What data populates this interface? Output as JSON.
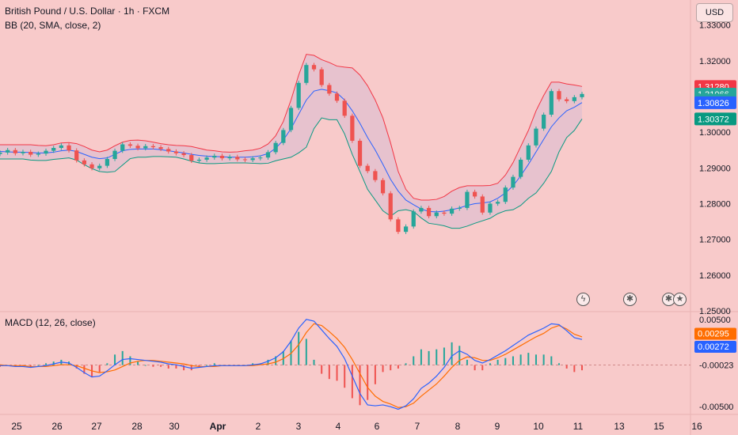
{
  "header": {
    "title": "British Pound / U.S. Dollar · 1h · FXCM",
    "bb_label": "BB (20, SMA, close, 2)",
    "macd_label": "MACD (12, 26, close)",
    "currency_button": "USD"
  },
  "colors": {
    "background": "#f8caca",
    "bull": "#26a69a",
    "bear": "#ef5350",
    "upper_band": "#f23645",
    "lower_band": "#089981",
    "basis": "#2962ff",
    "macd_line": "#2962ff",
    "signal_line": "#ff6d00"
  },
  "icons": [
    "lightning-icon",
    "flag-gb-icon",
    "flag-gb-us-icon"
  ],
  "chart_data": [
    {
      "type": "candlestick",
      "title": "British Pound / U.S. Dollar · 1h · FXCM",
      "indicator": "BB (20, SMA, close, 2)",
      "x_ticks": [
        "25",
        "26",
        "27",
        "28",
        "30",
        "Apr",
        "2",
        "3",
        "4",
        "6",
        "7",
        "8",
        "9",
        "10",
        "11",
        "13",
        "15",
        "16"
      ],
      "y_ticks": [
        "1.25000",
        "1.26000",
        "1.27000",
        "1.28000",
        "1.29000",
        "1.30000",
        "1.31000",
        "1.32000",
        "1.33000"
      ],
      "ylim": [
        1.25,
        1.337
      ],
      "price_labels": [
        {
          "label": "1.31280",
          "value": 1.3128,
          "color": "#f23645"
        },
        {
          "label": "1.31066",
          "value": 1.31066,
          "color": "#26a69a"
        },
        {
          "label": "59:47",
          "value": 1.309,
          "color": "#26a69a"
        },
        {
          "label": "1.30826",
          "value": 1.30826,
          "color": "#2962ff"
        },
        {
          "label": "1.30372",
          "value": 1.30372,
          "color": "#089981"
        }
      ],
      "close_values": [
        1.2943,
        1.295,
        1.2941,
        1.2945,
        1.2937,
        1.294,
        1.2948,
        1.2956,
        1.2963,
        1.2949,
        1.2921,
        1.291,
        1.2899,
        1.2906,
        1.2925,
        1.2948,
        1.2966,
        1.2962,
        1.2955,
        1.2961,
        1.2958,
        1.2953,
        1.2946,
        1.2941,
        1.2936,
        1.292,
        1.2923,
        1.2929,
        1.2934,
        1.2927,
        1.2931,
        1.2924,
        1.2922,
        1.2927,
        1.2929,
        1.2944,
        1.297,
        1.3006,
        1.3068,
        1.3138,
        1.3188,
        1.3176,
        1.3132,
        1.3108,
        1.3088,
        1.3046,
        1.2976,
        1.2906,
        1.2891,
        1.2866,
        1.2829,
        1.2756,
        1.2721,
        1.2736,
        1.2778,
        1.2788,
        1.2765,
        1.2775,
        1.2772,
        1.2786,
        1.2788,
        1.2833,
        1.282,
        1.2775,
        1.28,
        1.2805,
        1.2845,
        1.2875,
        1.2923,
        1.2963,
        1.301,
        1.3049,
        1.3115,
        1.3092,
        1.3087,
        1.3098,
        1.3107
      ],
      "bb_upper": [
        1.2965,
        1.2965,
        1.2965,
        1.2965,
        1.2965,
        1.2963,
        1.2962,
        1.2965,
        1.297,
        1.2971,
        1.2968,
        1.296,
        1.295,
        1.2945,
        1.295,
        1.2962,
        1.2972,
        1.2977,
        1.2978,
        1.2976,
        1.2972,
        1.2968,
        1.2965,
        1.2963,
        1.2962,
        1.296,
        1.2955,
        1.295,
        1.2948,
        1.2945,
        1.2944,
        1.2945,
        1.2948,
        1.295,
        1.2955,
        1.2967,
        1.299,
        1.303,
        1.309,
        1.316,
        1.3218,
        1.3215,
        1.3203,
        1.3195,
        1.3185,
        1.3182,
        1.318,
        1.316,
        1.313,
        1.309,
        1.304,
        1.297,
        1.289,
        1.284,
        1.2815,
        1.281,
        1.281,
        1.2812,
        1.282,
        1.2835,
        1.2845,
        1.285,
        1.285,
        1.285,
        1.2851,
        1.2857,
        1.288,
        1.2915,
        1.296,
        1.3005,
        1.306,
        1.3103,
        1.314,
        1.314,
        1.3135,
        1.3132,
        1.3128
      ],
      "bb_basis": [
        1.2946,
        1.2945,
        1.2944,
        1.2944,
        1.2943,
        1.2942,
        1.2942,
        1.2944,
        1.2948,
        1.295,
        1.2946,
        1.2938,
        1.293,
        1.2926,
        1.2928,
        1.2938,
        1.2948,
        1.2952,
        1.2953,
        1.2953,
        1.2953,
        1.2951,
        1.2948,
        1.2945,
        1.2942,
        1.2938,
        1.2935,
        1.2933,
        1.2932,
        1.2931,
        1.293,
        1.293,
        1.293,
        1.2931,
        1.2934,
        1.294,
        1.2955,
        1.2978,
        1.301,
        1.305,
        1.309,
        1.3115,
        1.312,
        1.3116,
        1.311,
        1.309,
        1.306,
        1.3025,
        1.2985,
        1.295,
        1.291,
        1.2868,
        1.2835,
        1.281,
        1.2797,
        1.2785,
        1.2778,
        1.2777,
        1.2779,
        1.2783,
        1.2788,
        1.2795,
        1.28,
        1.2802,
        1.2805,
        1.2815,
        1.283,
        1.285,
        1.2878,
        1.291,
        1.2945,
        1.298,
        1.3015,
        1.304,
        1.306,
        1.307,
        1.3083
      ],
      "bb_lower": [
        1.2925,
        1.2925,
        1.2925,
        1.2925,
        1.2922,
        1.2921,
        1.2921,
        1.2924,
        1.2926,
        1.2928,
        1.2922,
        1.2909,
        1.2898,
        1.289,
        1.2888,
        1.289,
        1.2908,
        1.2926,
        1.293,
        1.293,
        1.2932,
        1.2932,
        1.2931,
        1.293,
        1.2925,
        1.2919,
        1.2914,
        1.2912,
        1.2912,
        1.2913,
        1.2914,
        1.2914,
        1.2914,
        1.2913,
        1.2912,
        1.2913,
        1.292,
        1.2925,
        1.293,
        1.2942,
        1.2958,
        1.301,
        1.304,
        1.3035,
        1.3035,
        1.2995,
        1.2938,
        1.289,
        1.284,
        1.281,
        1.278,
        1.2765,
        1.278,
        1.2783,
        1.2778,
        1.276,
        1.2745,
        1.2742,
        1.2738,
        1.2731,
        1.2731,
        1.2737,
        1.2745,
        1.2752,
        1.2759,
        1.2772,
        1.278,
        1.2783,
        1.2795,
        1.2815,
        1.283,
        1.2857,
        1.289,
        1.2945,
        1.2985,
        1.3005,
        1.3037
      ]
    },
    {
      "type": "line",
      "title": "MACD (12, 26, close)",
      "y_ticks": [
        "-0.00500",
        "-0.00023",
        "0.00500"
      ],
      "ylim": [
        -0.0058,
        0.0058
      ],
      "price_labels": [
        {
          "label": "0.00295",
          "value": 0.00295,
          "color": "#ff6d00"
        },
        {
          "label": "0.00272",
          "value": 0.00272,
          "color": "#2962ff"
        },
        {
          "label": "-0.00023",
          "value": -0.00023,
          "color": "#131722"
        }
      ],
      "series": [
        {
          "name": "MACD",
          "values": [
            -0.0003,
            -0.0003,
            -0.0004,
            -0.0004,
            -0.0005,
            -0.0004,
            -0.0003,
            -0.0001,
            0.0001,
            0.0,
            -0.0005,
            -0.0011,
            -0.0016,
            -0.0015,
            -0.0009,
            -0.0002,
            0.0004,
            0.0005,
            0.0004,
            0.0003,
            0.0002,
            0.0001,
            -0.0001,
            -0.0002,
            -0.0004,
            -0.0006,
            -0.0005,
            -0.0004,
            -0.0003,
            -0.0003,
            -0.0003,
            -0.0003,
            -0.0003,
            -0.0002,
            -0.0001,
            0.0002,
            0.0006,
            0.0013,
            0.0025,
            0.004,
            0.005,
            0.0048,
            0.0038,
            0.0028,
            0.0019,
            0.0005,
            -0.0015,
            -0.0035,
            -0.0048,
            -0.0049,
            -0.0048,
            -0.005,
            -0.0053,
            -0.0049,
            -0.0041,
            -0.0029,
            -0.0023,
            -0.0015,
            -0.0005,
            0.0008,
            0.0014,
            0.001,
            0.0003,
            0.0,
            0.0004,
            0.0009,
            0.0014,
            0.002,
            0.0026,
            0.0032,
            0.0036,
            0.004,
            0.0045,
            0.0044,
            0.0037,
            0.0029,
            0.0027
          ]
        },
        {
          "name": "Signal",
          "values": [
            -0.0002,
            -0.0003,
            -0.0003,
            -0.0003,
            -0.0004,
            -0.0004,
            -0.0004,
            -0.0003,
            -0.0002,
            -0.0002,
            -0.0003,
            -0.0006,
            -0.0009,
            -0.0011,
            -0.001,
            -0.0008,
            -0.0004,
            0.0,
            0.0002,
            0.0003,
            0.0003,
            0.0002,
            0.0001,
            0.0,
            -0.0001,
            -0.0003,
            -0.0004,
            -0.0004,
            -0.0004,
            -0.0003,
            -0.0003,
            -0.0003,
            -0.0003,
            -0.0003,
            -0.0002,
            -0.0001,
            0.0001,
            0.0005,
            0.0011,
            0.0021,
            0.0035,
            0.0045,
            0.0043,
            0.0036,
            0.0028,
            0.0018,
            0.0004,
            -0.0012,
            -0.0028,
            -0.0038,
            -0.0044,
            -0.0047,
            -0.0051,
            -0.005,
            -0.0046,
            -0.0038,
            -0.0031,
            -0.0024,
            -0.0015,
            -0.0005,
            0.0003,
            0.0007,
            0.0006,
            0.0003,
            0.0003,
            0.0006,
            0.001,
            0.0015,
            0.002,
            0.0025,
            0.003,
            0.0034,
            0.004,
            0.0043,
            0.0039,
            0.0033,
            0.003
          ]
        }
      ]
    }
  ]
}
